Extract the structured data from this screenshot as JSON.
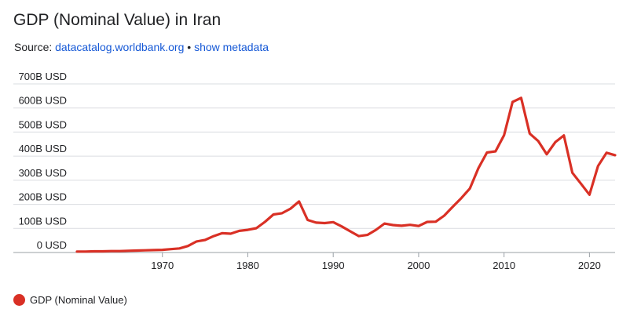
{
  "header": {
    "title": "GDP (Nominal Value) in Iran",
    "source_prefix": "Source:",
    "source_link": "datacatalog.worldbank.org",
    "separator": "•",
    "metadata_link": "show metadata"
  },
  "colors": {
    "series": "#d93025",
    "grid": "#dadce0",
    "axis": "#9aa0a6",
    "text": "#202124"
  },
  "chart_data": {
    "type": "line",
    "title": "GDP (Nominal Value) in Iran",
    "xlabel": "",
    "ylabel": "",
    "xlim": [
      1960,
      2023
    ],
    "ylim": [
      0,
      700
    ],
    "x_ticks": [
      1970,
      1980,
      1990,
      2000,
      2010,
      2020
    ],
    "y_ticks": [
      0,
      100,
      200,
      300,
      400,
      500,
      600,
      700
    ],
    "y_tick_labels": [
      "0 USD",
      "100B USD",
      "200B USD",
      "300B USD",
      "400B USD",
      "500B USD",
      "600B USD",
      "700B USD"
    ],
    "grid": true,
    "legend_position": "bottom-left",
    "series": [
      {
        "name": "GDP (Nominal Value)",
        "color": "#d93025",
        "x": [
          1960,
          1961,
          1962,
          1963,
          1964,
          1965,
          1966,
          1967,
          1968,
          1969,
          1970,
          1971,
          1972,
          1973,
          1974,
          1975,
          1976,
          1977,
          1978,
          1979,
          1980,
          1981,
          1982,
          1983,
          1984,
          1985,
          1986,
          1987,
          1988,
          1989,
          1990,
          1991,
          1992,
          1993,
          1994,
          1995,
          1996,
          1997,
          1998,
          1999,
          2000,
          2001,
          2002,
          2003,
          2004,
          2005,
          2006,
          2007,
          2008,
          2009,
          2010,
          2011,
          2012,
          2013,
          2014,
          2015,
          2016,
          2017,
          2018,
          2019,
          2020,
          2021,
          2022,
          2023
        ],
        "values": [
          4,
          4,
          5,
          5,
          6,
          6,
          7,
          8,
          9,
          10,
          11,
          14,
          17,
          27,
          46,
          52,
          68,
          80,
          78,
          90,
          94,
          101,
          127,
          158,
          163,
          182,
          212,
          135,
          124,
          122,
          126,
          108,
          88,
          68,
          73,
          94,
          120,
          114,
          111,
          115,
          110,
          127,
          128,
          153,
          190,
          226,
          266,
          350,
          415,
          420,
          487,
          625,
          642,
          494,
          463,
          408,
          458,
          486,
          331,
          286,
          240,
          359,
          414,
          404
        ]
      }
    ]
  }
}
